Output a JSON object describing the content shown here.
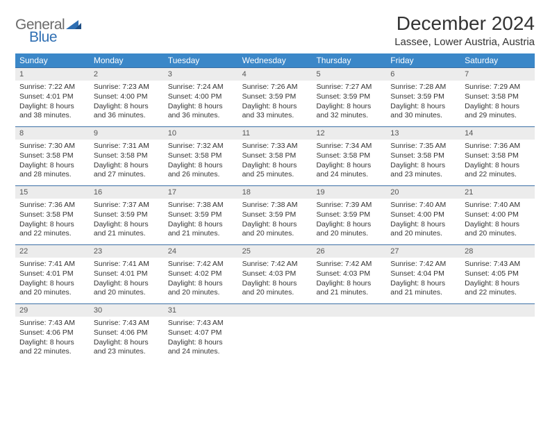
{
  "logo": {
    "general": "General",
    "blue": "Blue"
  },
  "title": "December 2024",
  "location": "Lassee, Lower Austria, Austria",
  "weekdays": [
    "Sunday",
    "Monday",
    "Tuesday",
    "Wednesday",
    "Thursday",
    "Friday",
    "Saturday"
  ],
  "header_bg": "#3b87c8",
  "row_border": "#3b6fa5",
  "daynum_bg": "#ececec",
  "weeks": [
    [
      {
        "n": "1",
        "sr": "7:22 AM",
        "ss": "4:01 PM",
        "dl": "8 hours and 38 minutes."
      },
      {
        "n": "2",
        "sr": "7:23 AM",
        "ss": "4:00 PM",
        "dl": "8 hours and 36 minutes."
      },
      {
        "n": "3",
        "sr": "7:24 AM",
        "ss": "4:00 PM",
        "dl": "8 hours and 36 minutes."
      },
      {
        "n": "4",
        "sr": "7:26 AM",
        "ss": "3:59 PM",
        "dl": "8 hours and 33 minutes."
      },
      {
        "n": "5",
        "sr": "7:27 AM",
        "ss": "3:59 PM",
        "dl": "8 hours and 32 minutes."
      },
      {
        "n": "6",
        "sr": "7:28 AM",
        "ss": "3:59 PM",
        "dl": "8 hours and 30 minutes."
      },
      {
        "n": "7",
        "sr": "7:29 AM",
        "ss": "3:58 PM",
        "dl": "8 hours and 29 minutes."
      }
    ],
    [
      {
        "n": "8",
        "sr": "7:30 AM",
        "ss": "3:58 PM",
        "dl": "8 hours and 28 minutes."
      },
      {
        "n": "9",
        "sr": "7:31 AM",
        "ss": "3:58 PM",
        "dl": "8 hours and 27 minutes."
      },
      {
        "n": "10",
        "sr": "7:32 AM",
        "ss": "3:58 PM",
        "dl": "8 hours and 26 minutes."
      },
      {
        "n": "11",
        "sr": "7:33 AM",
        "ss": "3:58 PM",
        "dl": "8 hours and 25 minutes."
      },
      {
        "n": "12",
        "sr": "7:34 AM",
        "ss": "3:58 PM",
        "dl": "8 hours and 24 minutes."
      },
      {
        "n": "13",
        "sr": "7:35 AM",
        "ss": "3:58 PM",
        "dl": "8 hours and 23 minutes."
      },
      {
        "n": "14",
        "sr": "7:36 AM",
        "ss": "3:58 PM",
        "dl": "8 hours and 22 minutes."
      }
    ],
    [
      {
        "n": "15",
        "sr": "7:36 AM",
        "ss": "3:58 PM",
        "dl": "8 hours and 22 minutes."
      },
      {
        "n": "16",
        "sr": "7:37 AM",
        "ss": "3:59 PM",
        "dl": "8 hours and 21 minutes."
      },
      {
        "n": "17",
        "sr": "7:38 AM",
        "ss": "3:59 PM",
        "dl": "8 hours and 21 minutes."
      },
      {
        "n": "18",
        "sr": "7:38 AM",
        "ss": "3:59 PM",
        "dl": "8 hours and 20 minutes."
      },
      {
        "n": "19",
        "sr": "7:39 AM",
        "ss": "3:59 PM",
        "dl": "8 hours and 20 minutes."
      },
      {
        "n": "20",
        "sr": "7:40 AM",
        "ss": "4:00 PM",
        "dl": "8 hours and 20 minutes."
      },
      {
        "n": "21",
        "sr": "7:40 AM",
        "ss": "4:00 PM",
        "dl": "8 hours and 20 minutes."
      }
    ],
    [
      {
        "n": "22",
        "sr": "7:41 AM",
        "ss": "4:01 PM",
        "dl": "8 hours and 20 minutes."
      },
      {
        "n": "23",
        "sr": "7:41 AM",
        "ss": "4:01 PM",
        "dl": "8 hours and 20 minutes."
      },
      {
        "n": "24",
        "sr": "7:42 AM",
        "ss": "4:02 PM",
        "dl": "8 hours and 20 minutes."
      },
      {
        "n": "25",
        "sr": "7:42 AM",
        "ss": "4:03 PM",
        "dl": "8 hours and 20 minutes."
      },
      {
        "n": "26",
        "sr": "7:42 AM",
        "ss": "4:03 PM",
        "dl": "8 hours and 21 minutes."
      },
      {
        "n": "27",
        "sr": "7:42 AM",
        "ss": "4:04 PM",
        "dl": "8 hours and 21 minutes."
      },
      {
        "n": "28",
        "sr": "7:43 AM",
        "ss": "4:05 PM",
        "dl": "8 hours and 22 minutes."
      }
    ],
    [
      {
        "n": "29",
        "sr": "7:43 AM",
        "ss": "4:06 PM",
        "dl": "8 hours and 22 minutes."
      },
      {
        "n": "30",
        "sr": "7:43 AM",
        "ss": "4:06 PM",
        "dl": "8 hours and 23 minutes."
      },
      {
        "n": "31",
        "sr": "7:43 AM",
        "ss": "4:07 PM",
        "dl": "8 hours and 24 minutes."
      },
      null,
      null,
      null,
      null
    ]
  ],
  "labels": {
    "sunrise": "Sunrise:",
    "sunset": "Sunset:",
    "daylight": "Daylight:"
  }
}
